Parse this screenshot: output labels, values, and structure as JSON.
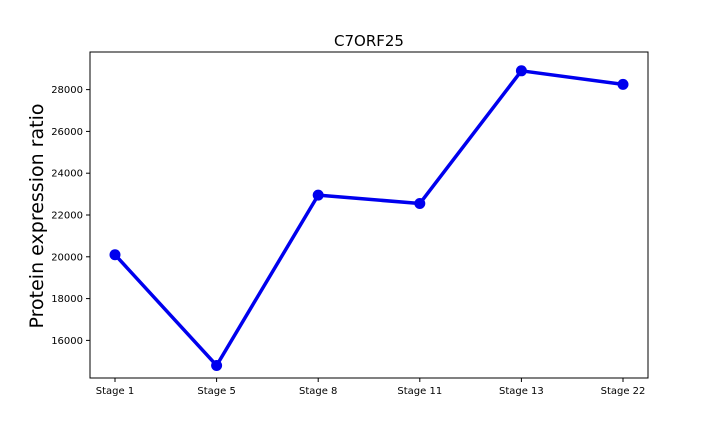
{
  "chart_data": {
    "type": "line",
    "title": "C7ORF25",
    "xlabel": "",
    "ylabel": "Protein expression ratio",
    "categories": [
      "Stage 1",
      "Stage 5",
      "Stage 8",
      "Stage 11",
      "Stage 13",
      "Stage 22"
    ],
    "series": [
      {
        "values": [
          20100,
          14800,
          22950,
          22550,
          28900,
          28250
        ],
        "color": "#0000ee"
      }
    ],
    "yticks": [
      16000,
      18000,
      20000,
      22000,
      24000,
      26000,
      28000
    ],
    "ylim": [
      14200,
      29800
    ],
    "grid": false
  }
}
